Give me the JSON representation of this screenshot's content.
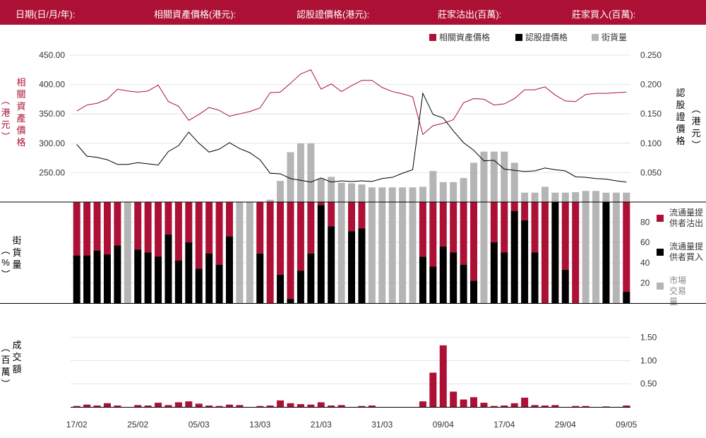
{
  "header": {
    "date": "日期(日/月/年):",
    "underlying": "相關資產價格(港元):",
    "warrant": "認股證價格(港元):",
    "lp_sell": "莊家沽出(百萬):",
    "lp_buy": "莊家買入(百萬):"
  },
  "legend_top": {
    "underlying": "相關資產價格",
    "warrant": "認股證價格",
    "outstanding": "街貨量"
  },
  "colors": {
    "crimson": "#ad1035",
    "black": "#000000",
    "gray": "#b5b5b5"
  },
  "axis_titles": {
    "left_price": "相關資產價格",
    "left_price_unit": "港元",
    "right_price": "認股證價格",
    "right_price_unit": "港元",
    "outstanding": "街貨量",
    "outstanding_unit": "%",
    "turnover": "成交額",
    "turnover_unit": "百萬"
  },
  "legend_mid": {
    "lp_sell": "流通量提供者沽出",
    "lp_buy": "流通量提供者買入",
    "market": "市場交易量"
  },
  "chart_data": {
    "type": "combo",
    "x_tick_labels": [
      "17/02",
      "25/02",
      "05/03",
      "13/03",
      "21/03",
      "31/03",
      "09/04",
      "17/04",
      "29/04",
      "09/05"
    ],
    "x_tick_index": [
      0,
      6,
      12,
      18,
      24,
      30,
      36,
      42,
      48,
      54
    ],
    "underlying_ylim": [
      200,
      450
    ],
    "underlying_yticks": [
      "250.00",
      "300.00",
      "350.00",
      "400.00",
      "450.00"
    ],
    "warrant_ylim": [
      0,
      0.25
    ],
    "warrant_yticks": [
      "0.050",
      "0.100",
      "0.150",
      "0.200",
      "0.250"
    ],
    "pct_ylim": [
      0,
      100
    ],
    "pct_yticks": [
      "20",
      "40",
      "60",
      "80"
    ],
    "turnover_ylim": [
      0,
      1.8
    ],
    "turnover_yticks": [
      "0.50",
      "1.00",
      "1.50"
    ],
    "underlying": [
      355,
      365,
      368,
      375,
      392,
      389,
      387,
      389,
      399,
      371,
      363,
      339,
      349,
      361,
      356,
      346,
      350,
      354,
      360,
      386,
      387,
      402,
      418,
      425,
      392,
      401,
      388,
      398,
      407,
      407,
      395,
      388,
      384,
      379,
      315,
      330,
      334,
      340,
      369,
      376,
      375,
      365,
      367,
      376,
      391,
      391,
      396,
      382,
      372,
      371,
      383,
      385,
      385,
      386,
      387
    ],
    "warrant": [
      0.098,
      0.078,
      0.076,
      0.072,
      0.064,
      0.064,
      0.067,
      0.065,
      0.063,
      0.086,
      0.096,
      0.119,
      0.1,
      0.085,
      0.09,
      0.101,
      0.091,
      0.084,
      0.072,
      0.049,
      0.048,
      0.04,
      0.037,
      0.034,
      0.041,
      0.034,
      0.036,
      0.035,
      0.036,
      0.035,
      0.04,
      0.042,
      0.049,
      0.055,
      0.185,
      0.149,
      0.143,
      0.121,
      0.101,
      0.088,
      0.07,
      0.071,
      0.056,
      0.054,
      0.052,
      0.053,
      0.058,
      0.055,
      0.053,
      0.043,
      0.042,
      0.04,
      0.039,
      0.036,
      0.034
    ],
    "outstanding": [
      0,
      0,
      0,
      0,
      0,
      0,
      0,
      0,
      0,
      0,
      0,
      0,
      0,
      0,
      0,
      0,
      0,
      0,
      0,
      4,
      36,
      85,
      100,
      100,
      40,
      43,
      33,
      32,
      30,
      25,
      25,
      25,
      25,
      25,
      26,
      53,
      34,
      34,
      41,
      67,
      86,
      86,
      86,
      67,
      16,
      16,
      26,
      16,
      16,
      17,
      19,
      19,
      16,
      16,
      16
    ],
    "lp_sell": [
      56,
      56,
      48,
      53,
      43,
      0,
      47,
      51,
      55,
      32,
      59,
      41,
      66,
      52,
      62,
      34,
      0,
      0,
      51,
      100,
      72,
      97,
      69,
      51,
      3,
      24,
      0,
      29,
      26,
      0,
      0,
      0,
      0,
      0,
      54,
      65,
      44,
      51,
      62,
      78,
      0,
      41,
      51,
      10,
      18,
      51,
      100,
      0,
      67,
      100,
      0,
      0,
      0,
      0,
      90
    ],
    "lp_buy": [
      47,
      47,
      52,
      48,
      57,
      0,
      53,
      50,
      46,
      68,
      42,
      60,
      34,
      49,
      38,
      66,
      68,
      0,
      49,
      0,
      28,
      4,
      32,
      49,
      97,
      76,
      0,
      71,
      74,
      0,
      0,
      0,
      0,
      0,
      46,
      36,
      56,
      50,
      38,
      22,
      0,
      60,
      50,
      91,
      82,
      50,
      0,
      100,
      33,
      0,
      0,
      0,
      100,
      0,
      11
    ],
    "market": [
      0,
      0,
      0,
      0,
      0,
      100,
      0,
      0,
      0,
      0,
      0,
      0,
      0,
      0,
      0,
      0,
      100,
      100,
      0,
      0,
      0,
      0,
      0,
      0,
      0,
      0,
      100,
      0,
      0,
      100,
      100,
      100,
      100,
      100,
      0,
      0,
      0,
      0,
      0,
      0,
      100,
      0,
      0,
      0,
      0,
      0,
      0,
      0,
      0,
      0,
      100,
      100,
      0,
      100,
      0
    ],
    "turnover": [
      0.02,
      0.05,
      0.03,
      0.08,
      0.03,
      0.0,
      0.04,
      0.03,
      0.09,
      0.04,
      0.1,
      0.12,
      0.07,
      0.03,
      0.02,
      0.05,
      0.04,
      0.0,
      0.02,
      0.03,
      0.14,
      0.08,
      0.06,
      0.05,
      0.1,
      0.03,
      0.04,
      0.0,
      0.02,
      0.03,
      0.0,
      0.0,
      0.0,
      0.0,
      0.12,
      0.74,
      1.33,
      0.33,
      0.16,
      0.21,
      0.09,
      0.02,
      0.03,
      0.08,
      0.2,
      0.04,
      0.03,
      0.04,
      0.0,
      0.02,
      0.02,
      0.0,
      0.01,
      0.0,
      0.03
    ]
  }
}
